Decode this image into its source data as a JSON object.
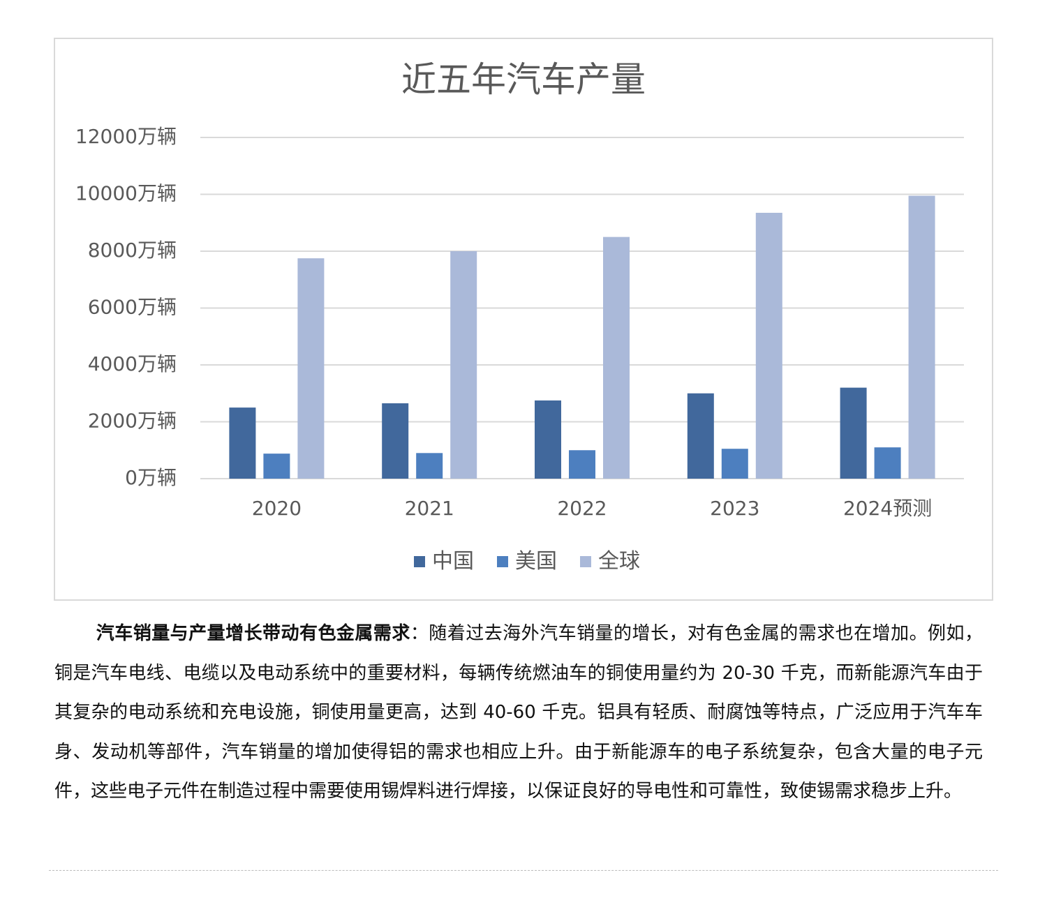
{
  "chart_data": {
    "type": "bar",
    "title": "近五年汽车产量",
    "categories": [
      "2020",
      "2021",
      "2022",
      "2023",
      "2024预测"
    ],
    "series": [
      {
        "name": "中国",
        "color": "#41689c",
        "values": [
          2500,
          2650,
          2750,
          3000,
          3200
        ]
      },
      {
        "name": "美国",
        "color": "#4d7fbf",
        "values": [
          880,
          900,
          1000,
          1050,
          1100
        ]
      },
      {
        "name": "全球",
        "color": "#aab9d9",
        "values": [
          7750,
          8000,
          8500,
          9350,
          9950
        ]
      }
    ],
    "ylim": [
      0,
      12000
    ],
    "yticks": [
      {
        "value": 0,
        "label": "0万辆"
      },
      {
        "value": 2000,
        "label": "2000万辆"
      },
      {
        "value": 4000,
        "label": "4000万辆"
      },
      {
        "value": 6000,
        "label": "6000万辆"
      },
      {
        "value": 8000,
        "label": "8000万辆"
      },
      {
        "value": 10000,
        "label": "10000万辆"
      },
      {
        "value": 12000,
        "label": "12000万辆"
      }
    ],
    "grid": true,
    "legend": "bottom"
  },
  "paragraph": {
    "lead": "汽车销量与产量增长带动有色金属需求",
    "text": "：随着过去海外汽车销量的增长，对有色金属的需求也在增加。例如，铜是汽车电线、电缆以及电动系统中的重要材料，每辆传统燃油车的铜使用量约为 20-30 千克，而新能源汽车由于其复杂的电动系统和充电设施，铜使用量更高，达到 40-60 千克。铝具有轻质、耐腐蚀等特点，广泛应用于汽车车身、发动机等部件，汽车销量的增加使得铝的需求也相应上升。由于新能源车的电子系统复杂，包含大量的电子元件，这些电子元件在制造过程中需要使用锡焊料进行焊接，以保证良好的导电性和可靠性，致使锡需求稳步上升。"
  }
}
